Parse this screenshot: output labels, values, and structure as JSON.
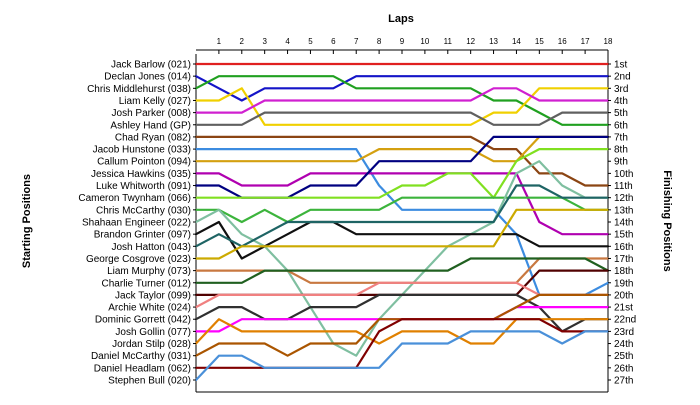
{
  "chart_data": {
    "type": "line",
    "title": "Laps",
    "ylabel_left": "Starting Positions",
    "ylabel_right": "Finishing Positions",
    "x": [
      0,
      1,
      2,
      3,
      4,
      5,
      6,
      7,
      8,
      9,
      10,
      11,
      12,
      13,
      14,
      15,
      16,
      17,
      18
    ],
    "x_tick_labels": [
      "1",
      "2",
      "3",
      "4",
      "5",
      "6",
      "7",
      "8",
      "9",
      "10",
      "11",
      "12",
      "13",
      "14",
      "15",
      "16",
      "17",
      "18"
    ],
    "drivers": [
      "Jack Barlow (021)",
      "Declan Jones (014)",
      "Chris Middlehurst (038)",
      "Liam Kelly (027)",
      "Josh Parker (008)",
      "Ashley Hand (GP)",
      "Chad Ryan (082)",
      "Jacob Hunstone (033)",
      "Callum Pointon (094)",
      "Jessica Hawkins (035)",
      "Luke Whitworth (091)",
      "Cameron Twynham (066)",
      "Chris McCarthy (030)",
      "Shahaan Engineer (022)",
      "Brandon Grinter (097)",
      "Josh Hatton (043)",
      "George Cosgrove (023)",
      "Liam Murphy (073)",
      "Charlie Turner (012)",
      "Jack Taylor (099)",
      "Archie White (024)",
      "Dominic Gorrett (042)",
      "Josh Gollin (077)",
      "Jordan Stilp (028)",
      "Daniel McCarthy (031)",
      "Daniel Headlam (062)",
      "Stephen Bull (020)"
    ],
    "finishing_positions": [
      "1st",
      "2nd",
      "3rd",
      "4th",
      "5th",
      "6th",
      "7th",
      "8th",
      "9th",
      "10th",
      "11th",
      "12th",
      "13th",
      "14th",
      "15th",
      "16th",
      "17th",
      "18th",
      "19th",
      "20th",
      "21st",
      "22nd",
      "23rd",
      "24th",
      "25th",
      "26th",
      "27th"
    ],
    "ylim": [
      1,
      27
    ],
    "grid": false,
    "series": [
      {
        "color": "#e02020",
        "values": [
          1,
          1,
          1,
          1,
          1,
          1,
          1,
          1,
          1,
          1,
          1,
          1,
          1,
          1,
          1,
          1,
          1,
          1,
          1
        ]
      },
      {
        "color": "#1414c8",
        "values": [
          2,
          3,
          4,
          3,
          3,
          3,
          3,
          2,
          2,
          2,
          2,
          2,
          2,
          2,
          2,
          2,
          2,
          2,
          2
        ]
      },
      {
        "color": "#20a020",
        "values": [
          3,
          2,
          2,
          2,
          2,
          2,
          2,
          3,
          3,
          3,
          3,
          3,
          3,
          4,
          4,
          5,
          6,
          6,
          6
        ]
      },
      {
        "color": "#f0d000",
        "values": [
          4,
          4,
          3,
          6,
          6,
          6,
          6,
          6,
          6,
          6,
          6,
          6,
          6,
          5,
          5,
          3,
          3,
          3,
          3
        ]
      },
      {
        "color": "#d020d0",
        "values": [
          5,
          5,
          5,
          4,
          4,
          4,
          4,
          4,
          4,
          4,
          4,
          4,
          4,
          3,
          3,
          4,
          4,
          4,
          4
        ]
      },
      {
        "color": "#606060",
        "values": [
          6,
          6,
          6,
          5,
          5,
          5,
          5,
          5,
          5,
          5,
          5,
          5,
          5,
          6,
          6,
          6,
          5,
          5,
          5
        ]
      },
      {
        "color": "#8b4513",
        "values": [
          7,
          7,
          7,
          7,
          7,
          7,
          7,
          7,
          7,
          7,
          7,
          7,
          7,
          8,
          8,
          10,
          10,
          11,
          11
        ]
      },
      {
        "color": "#3c8ce0",
        "values": [
          8,
          8,
          8,
          8,
          8,
          8,
          8,
          8,
          11,
          13,
          13,
          13,
          13,
          13,
          15,
          20,
          20,
          20,
          19
        ]
      },
      {
        "color": "#d4a010",
        "values": [
          9,
          9,
          9,
          9,
          9,
          9,
          9,
          9,
          8,
          8,
          8,
          8,
          8,
          9,
          9,
          7,
          7,
          7,
          7
        ]
      },
      {
        "color": "#b000b0",
        "values": [
          10,
          10,
          11,
          11,
          11,
          10,
          10,
          10,
          10,
          10,
          10,
          10,
          10,
          10,
          10,
          14,
          15,
          15,
          15
        ]
      },
      {
        "color": "#000080",
        "values": [
          11,
          11,
          12,
          12,
          12,
          11,
          11,
          11,
          9,
          9,
          9,
          9,
          9,
          7,
          7,
          7,
          7,
          7,
          7
        ]
      },
      {
        "color": "#80e020",
        "values": [
          12,
          12,
          12,
          12,
          12,
          12,
          12,
          12,
          12,
          11,
          11,
          10,
          10,
          12,
          9,
          8,
          8,
          8,
          8
        ]
      },
      {
        "color": "#3cb43c",
        "values": [
          13,
          13,
          14,
          13,
          14,
          13,
          13,
          13,
          13,
          12,
          12,
          12,
          12,
          12,
          12,
          12,
          12,
          13,
          13
        ]
      },
      {
        "color": "#7fbfa0",
        "values": [
          14,
          13,
          15,
          16,
          18,
          21,
          24,
          25,
          22,
          20,
          18,
          16,
          15,
          14,
          10,
          9,
          11,
          12,
          12
        ]
      },
      {
        "color": "#101010",
        "values": [
          15,
          14,
          17,
          16,
          15,
          14,
          14,
          15,
          15,
          15,
          15,
          15,
          15,
          15,
          15,
          16,
          16,
          16,
          16
        ]
      },
      {
        "color": "#1e6464",
        "values": [
          16,
          15,
          16,
          15,
          14,
          14,
          14,
          14,
          14,
          14,
          14,
          14,
          14,
          14,
          11,
          11,
          12,
          12,
          12
        ]
      },
      {
        "color": "#ccaa00",
        "values": [
          17,
          17,
          16,
          16,
          16,
          16,
          16,
          16,
          16,
          16,
          16,
          16,
          16,
          16,
          13,
          13,
          13,
          13,
          13
        ]
      },
      {
        "color": "#c87840",
        "values": [
          18,
          18,
          18,
          18,
          18,
          19,
          19,
          19,
          19,
          19,
          19,
          19,
          19,
          19,
          19,
          17,
          17,
          17,
          17
        ]
      },
      {
        "color": "#206020",
        "values": [
          19,
          19,
          19,
          18,
          18,
          18,
          18,
          18,
          18,
          18,
          18,
          18,
          17,
          17,
          17,
          17,
          17,
          17,
          18
        ]
      },
      {
        "color": "#500000",
        "values": [
          20,
          20,
          20,
          20,
          20,
          20,
          20,
          20,
          20,
          20,
          20,
          20,
          20,
          20,
          20,
          18,
          18,
          18,
          18
        ]
      },
      {
        "color": "#f08080",
        "values": [
          21,
          20,
          20,
          20,
          20,
          20,
          20,
          20,
          19,
          19,
          19,
          19,
          19,
          19,
          19,
          20,
          20,
          20,
          20
        ]
      },
      {
        "color": "#303030",
        "values": [
          22,
          21,
          21,
          22,
          22,
          21,
          21,
          21,
          20,
          20,
          20,
          20,
          20,
          20,
          20,
          21,
          23,
          22,
          22
        ]
      },
      {
        "color": "#ff00ff",
        "values": [
          23,
          23,
          22,
          22,
          22,
          22,
          22,
          22,
          22,
          22,
          22,
          22,
          22,
          22,
          21,
          21,
          21,
          21,
          21
        ]
      },
      {
        "color": "#e08000",
        "values": [
          24,
          22,
          23,
          23,
          23,
          23,
          23,
          23,
          24,
          23,
          23,
          23,
          24,
          24,
          22,
          22,
          22,
          22,
          22
        ]
      },
      {
        "color": "#aa5500",
        "values": [
          25,
          24,
          24,
          24,
          25,
          24,
          24,
          24,
          22,
          22,
          22,
          22,
          22,
          22,
          21,
          20,
          20,
          20,
          20
        ]
      },
      {
        "color": "#800000",
        "values": [
          26,
          26,
          26,
          26,
          26,
          26,
          26,
          26,
          23,
          22,
          22,
          22,
          22,
          22,
          22,
          22,
          23,
          23,
          23
        ]
      },
      {
        "color": "#4a90d9",
        "values": [
          27,
          25,
          25,
          26,
          26,
          26,
          26,
          26,
          26,
          24,
          24,
          24,
          23,
          23,
          23,
          23,
          24,
          23,
          23
        ]
      }
    ]
  }
}
